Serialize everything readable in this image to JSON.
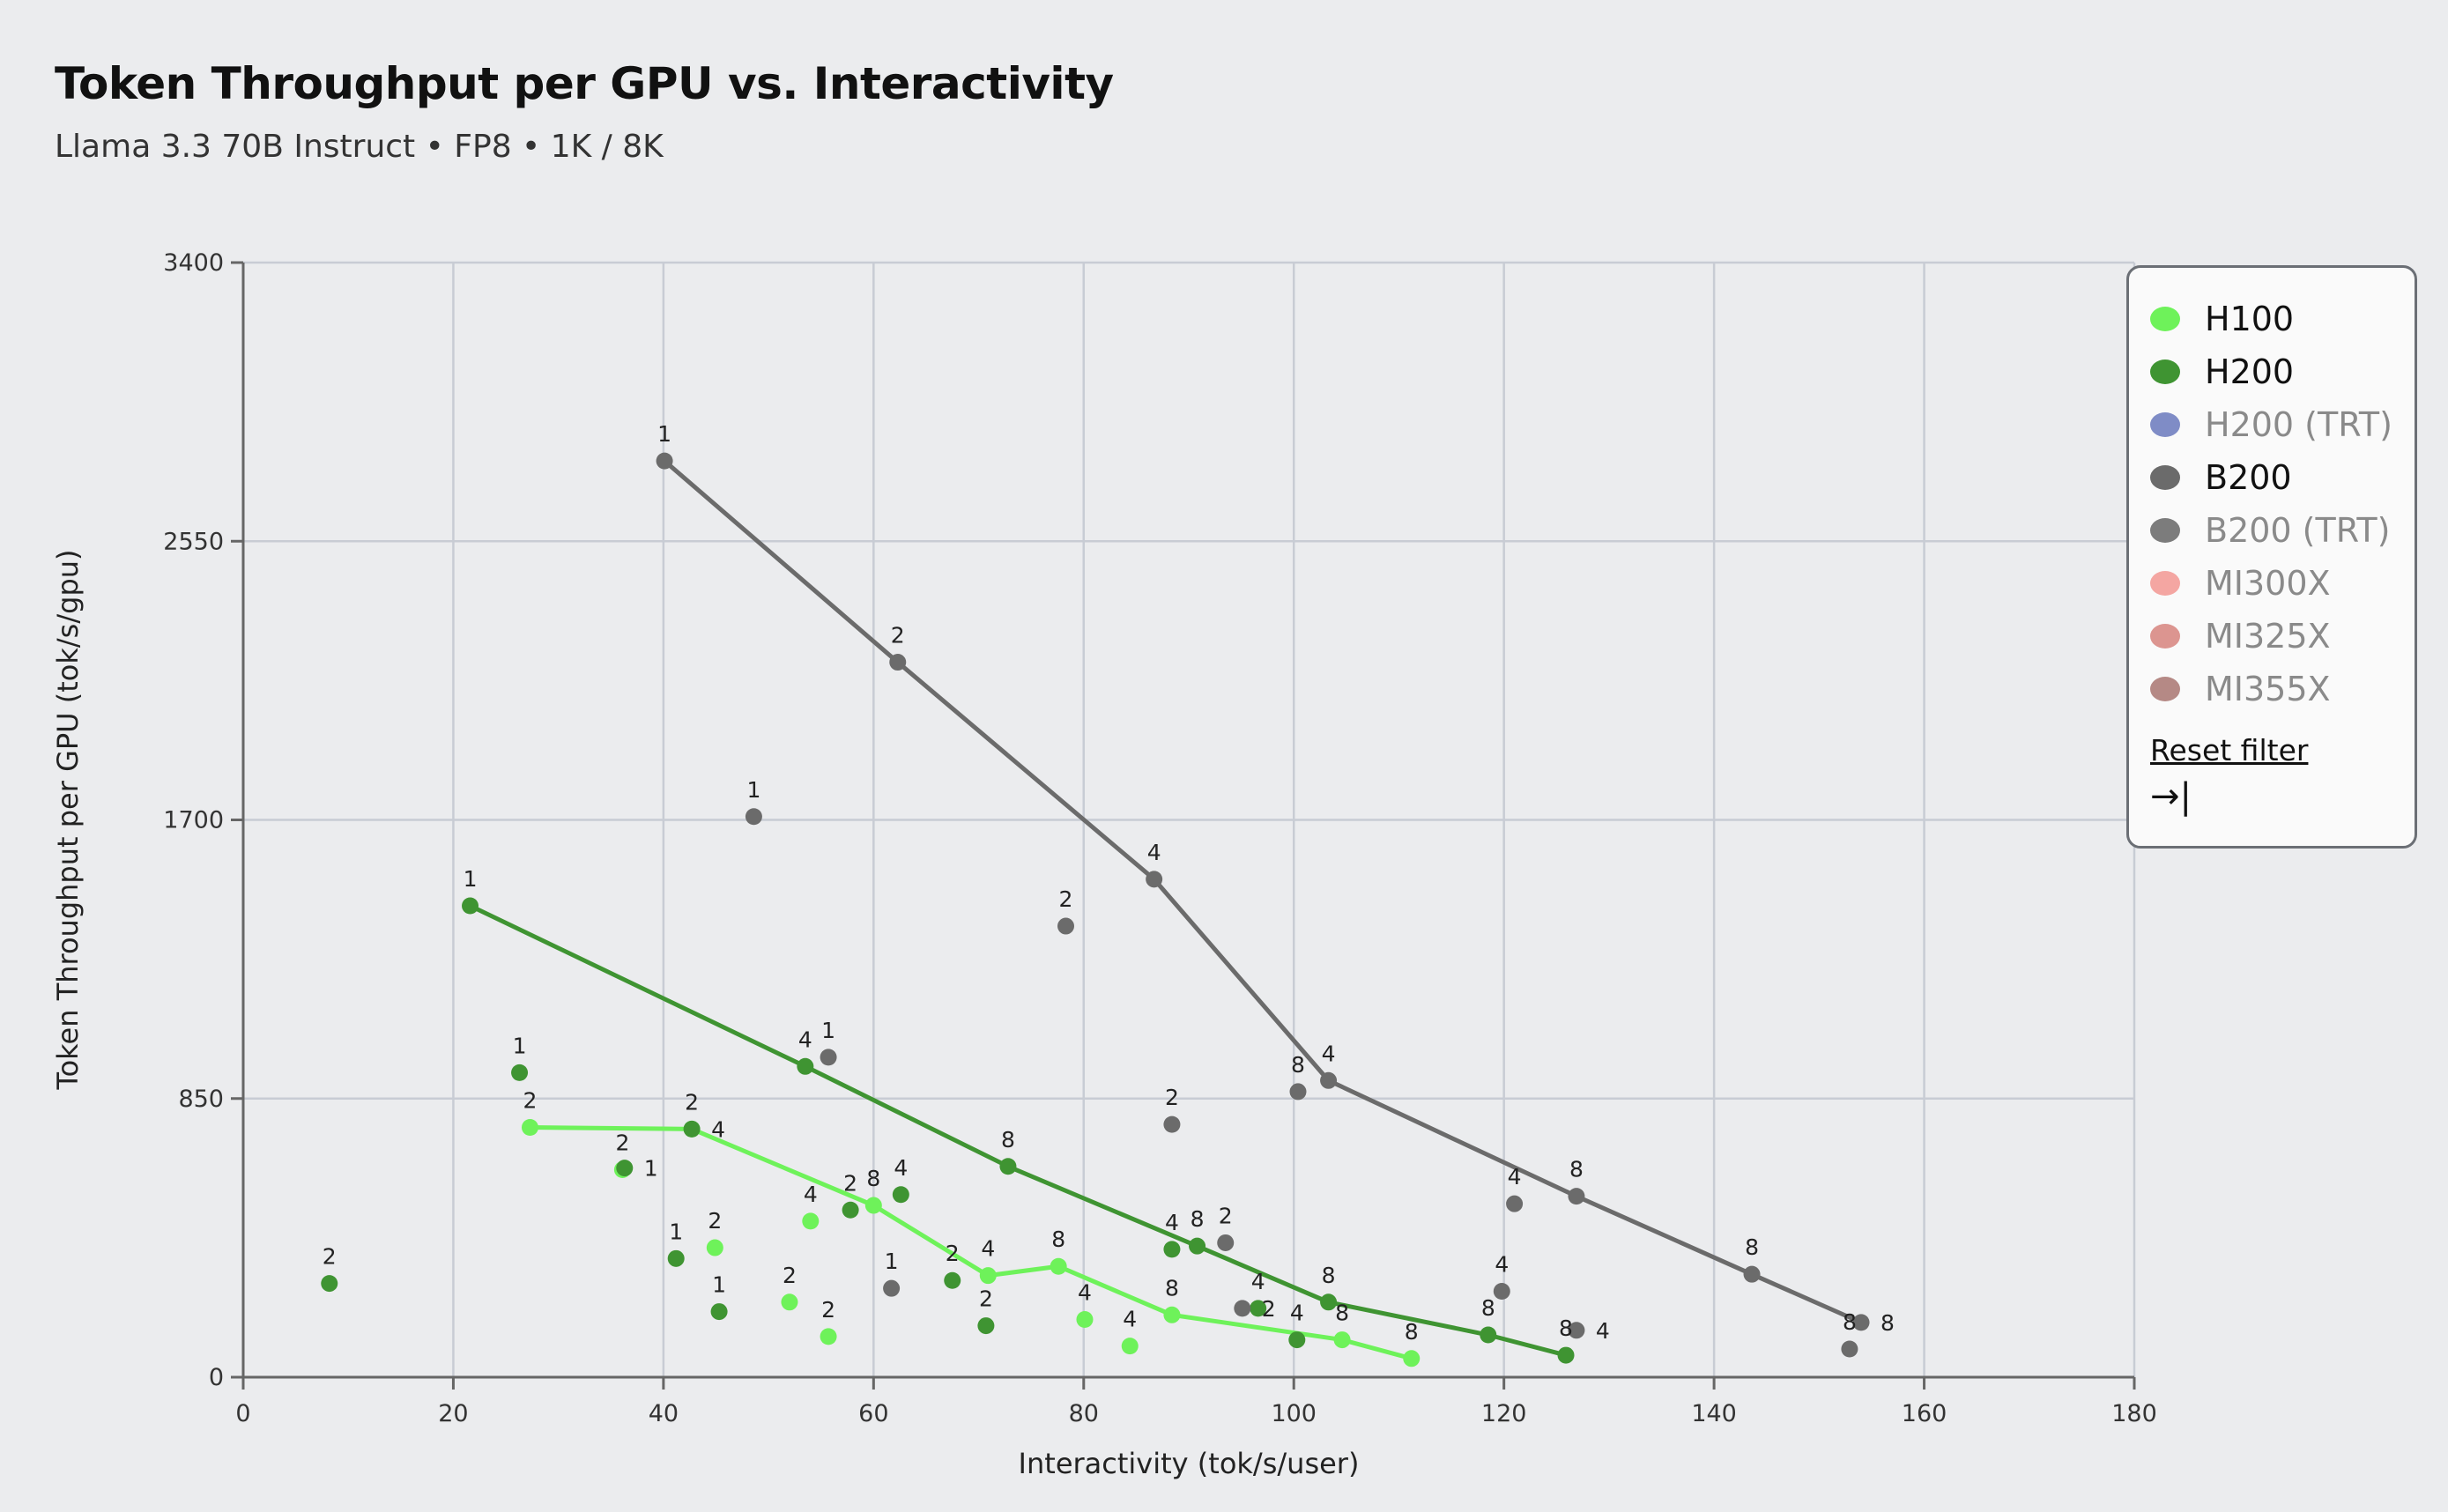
{
  "chart_data": {
    "type": "scatter",
    "title": "Token Throughput per GPU vs. Interactivity",
    "subtitle": "Llama 3.3 70B Instruct • FP8 • 1K / 8K",
    "xlabel": "Interactivity (tok/s/user)",
    "ylabel": "Token Throughput per GPU (tok/s/gpu)",
    "xlim": [
      0,
      180
    ],
    "ylim": [
      0,
      3400
    ],
    "xticks": [
      0,
      20,
      40,
      60,
      80,
      100,
      120,
      140,
      160,
      180
    ],
    "yticks": [
      0,
      850,
      1700,
      2550,
      3400
    ],
    "grid": true,
    "legend_placement": "top-right",
    "series": [
      {
        "name": "H100",
        "color": "#6ef25a",
        "frontier": [
          [
            27.3,
            762,
            "2"
          ],
          [
            42.7,
            757,
            "2"
          ],
          [
            60.0,
            524,
            "8"
          ],
          [
            70.9,
            310,
            "4"
          ],
          [
            77.6,
            338,
            "8"
          ],
          [
            88.4,
            190,
            "8"
          ],
          [
            104.6,
            114,
            "8"
          ],
          [
            111.2,
            57,
            "8"
          ]
        ],
        "points": [
          [
            36.1,
            633,
            "2"
          ],
          [
            44.9,
            395,
            "2"
          ],
          [
            52.0,
            229,
            "2"
          ],
          [
            55.7,
            124,
            "2"
          ],
          [
            54.0,
            476,
            "4"
          ],
          [
            80.1,
            176,
            "4"
          ],
          [
            84.4,
            95,
            "4"
          ]
        ]
      },
      {
        "name": "H200",
        "color": "#3f9432",
        "frontier": [
          [
            21.6,
            1438,
            "1"
          ],
          [
            53.5,
            948,
            "4"
          ],
          [
            72.8,
            643,
            "8"
          ],
          [
            90.8,
            400,
            "8"
          ],
          [
            103.3,
            229,
            "8"
          ],
          [
            118.5,
            129,
            "8"
          ],
          [
            125.9,
            67,
            "8"
          ]
        ],
        "points": [
          [
            8.2,
            286,
            "2"
          ],
          [
            26.3,
            929,
            "1"
          ],
          [
            36.3,
            638,
            "1"
          ],
          [
            42.7,
            757,
            "4"
          ],
          [
            41.2,
            362,
            "1"
          ],
          [
            45.3,
            200,
            "1"
          ],
          [
            57.8,
            510,
            "2"
          ],
          [
            62.6,
            557,
            "4"
          ],
          [
            67.5,
            295,
            "2"
          ],
          [
            70.7,
            157,
            "2"
          ],
          [
            88.4,
            390,
            "4"
          ],
          [
            96.6,
            210,
            "4"
          ],
          [
            100.3,
            114,
            "4"
          ]
        ]
      },
      {
        "name": "B200",
        "color": "#6b6b6b",
        "frontier": [
          [
            40.1,
            2795,
            "1"
          ],
          [
            62.3,
            2181,
            "2"
          ],
          [
            86.7,
            1519,
            "4"
          ],
          [
            103.3,
            905,
            "4"
          ],
          [
            126.9,
            552,
            "8"
          ],
          [
            143.6,
            314,
            "8"
          ],
          [
            154.0,
            167,
            "8"
          ]
        ],
        "points": [
          [
            48.6,
            1710,
            "1"
          ],
          [
            55.7,
            976,
            "1"
          ],
          [
            61.7,
            271,
            "1"
          ],
          [
            78.3,
            1376,
            "2"
          ],
          [
            88.4,
            771,
            "2"
          ],
          [
            93.5,
            410,
            "2"
          ],
          [
            95.1,
            210,
            "2"
          ],
          [
            100.4,
            871,
            "8"
          ],
          [
            121.0,
            529,
            "4"
          ],
          [
            119.8,
            262,
            "4"
          ],
          [
            126.9,
            143,
            "4"
          ],
          [
            152.9,
            86,
            "8"
          ]
        ]
      }
    ]
  },
  "legend": {
    "items": [
      {
        "label": "H100",
        "color": "#6ef25a",
        "active": true
      },
      {
        "label": "H200",
        "color": "#3f9432",
        "active": true
      },
      {
        "label": "H200 (TRT)",
        "color": "#7f8cc6",
        "active": false
      },
      {
        "label": "B200",
        "color": "#6b6b6b",
        "active": true
      },
      {
        "label": "B200 (TRT)",
        "color": "#7c7c7c",
        "active": false
      },
      {
        "label": "MI300X",
        "color": "#f4a6a2",
        "active": false
      },
      {
        "label": "MI325X",
        "color": "#dc9590",
        "active": false
      },
      {
        "label": "MI355X",
        "color": "#b58985",
        "active": false
      }
    ],
    "reset_label": "Reset filter",
    "collapse_icon": "→|"
  }
}
